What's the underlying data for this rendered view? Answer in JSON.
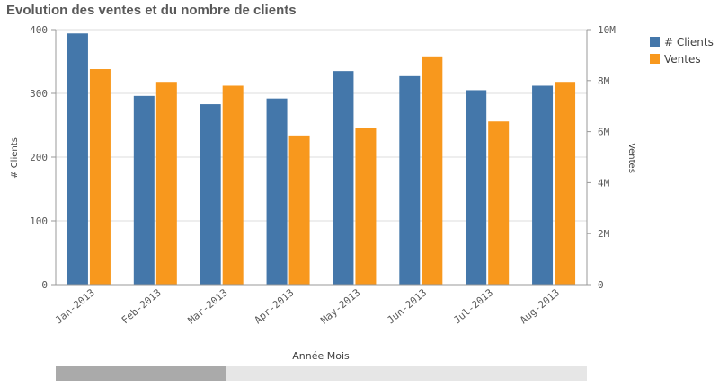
{
  "chart_data": {
    "type": "bar",
    "title": "Evolution des ventes et du nombre de clients",
    "categories": [
      "Jan-2013",
      "Feb-2013",
      "Mar-2013",
      "Apr-2013",
      "May-2013",
      "Jun-2013",
      "Jul-2013",
      "Aug-2013"
    ],
    "series": [
      {
        "name": "# Clients",
        "axis": "left",
        "color": "#4477aa",
        "values": [
          394,
          296,
          283,
          292,
          335,
          327,
          305,
          312
        ]
      },
      {
        "name": "Ventes",
        "axis": "right",
        "color": "#f8981d",
        "values": [
          8450000,
          7950000,
          7800000,
          5850000,
          6150000,
          8950000,
          6400000,
          7950000
        ]
      }
    ],
    "xlabel": "Année Mois",
    "ylabel_left": "# Clients",
    "ylabel_right": "Ventes",
    "ylim_left": [
      0,
      400
    ],
    "ylim_right": [
      0,
      10000000
    ],
    "yticks_left": [
      "0",
      "100",
      "200",
      "300",
      "400"
    ],
    "yticks_right": [
      "0",
      "2M",
      "4M",
      "6M",
      "8M",
      "10M"
    ],
    "grid": true,
    "legend_position": "top-right"
  },
  "scrollbar": {
    "visible_fraction": 0.32
  }
}
